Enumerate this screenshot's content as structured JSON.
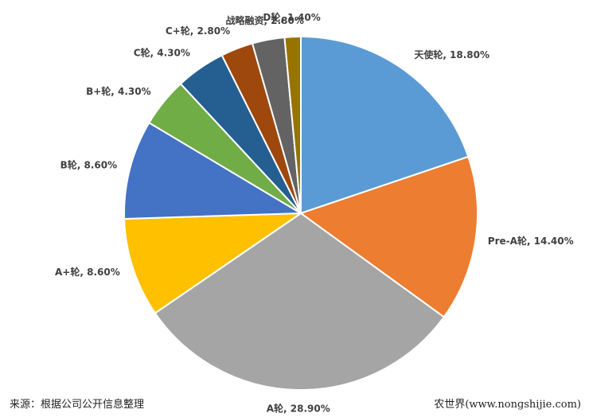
{
  "chart_data": {
    "type": "pie",
    "values": [
      18.8,
      14.4,
      28.9,
      8.6,
      8.6,
      4.3,
      4.3,
      2.8,
      2.8,
      1.4
    ],
    "value_labels": [
      "天使轮, 18.80%",
      "Pre-A轮, 14.40%",
      "A轮, 28.90%",
      "A+轮, 8.60%",
      "B轮, 8.60%",
      "B+轮, 4.30%",
      "C轮, 4.30%",
      "C+轮, 2.80%",
      "战略融资, 2.80%",
      "D轮, 1.40%"
    ],
    "colors": [
      "#5b9bd5",
      "#ed7d31",
      "#a5a5a5",
      "#ffc000",
      "#4472c4",
      "#70ad47",
      "#255e91",
      "#9e480e",
      "#636363",
      "#997300"
    ],
    "source": "来源：根据公司公开信息整理",
    "watermark": "农世界(www.nongshijie.com)"
  }
}
